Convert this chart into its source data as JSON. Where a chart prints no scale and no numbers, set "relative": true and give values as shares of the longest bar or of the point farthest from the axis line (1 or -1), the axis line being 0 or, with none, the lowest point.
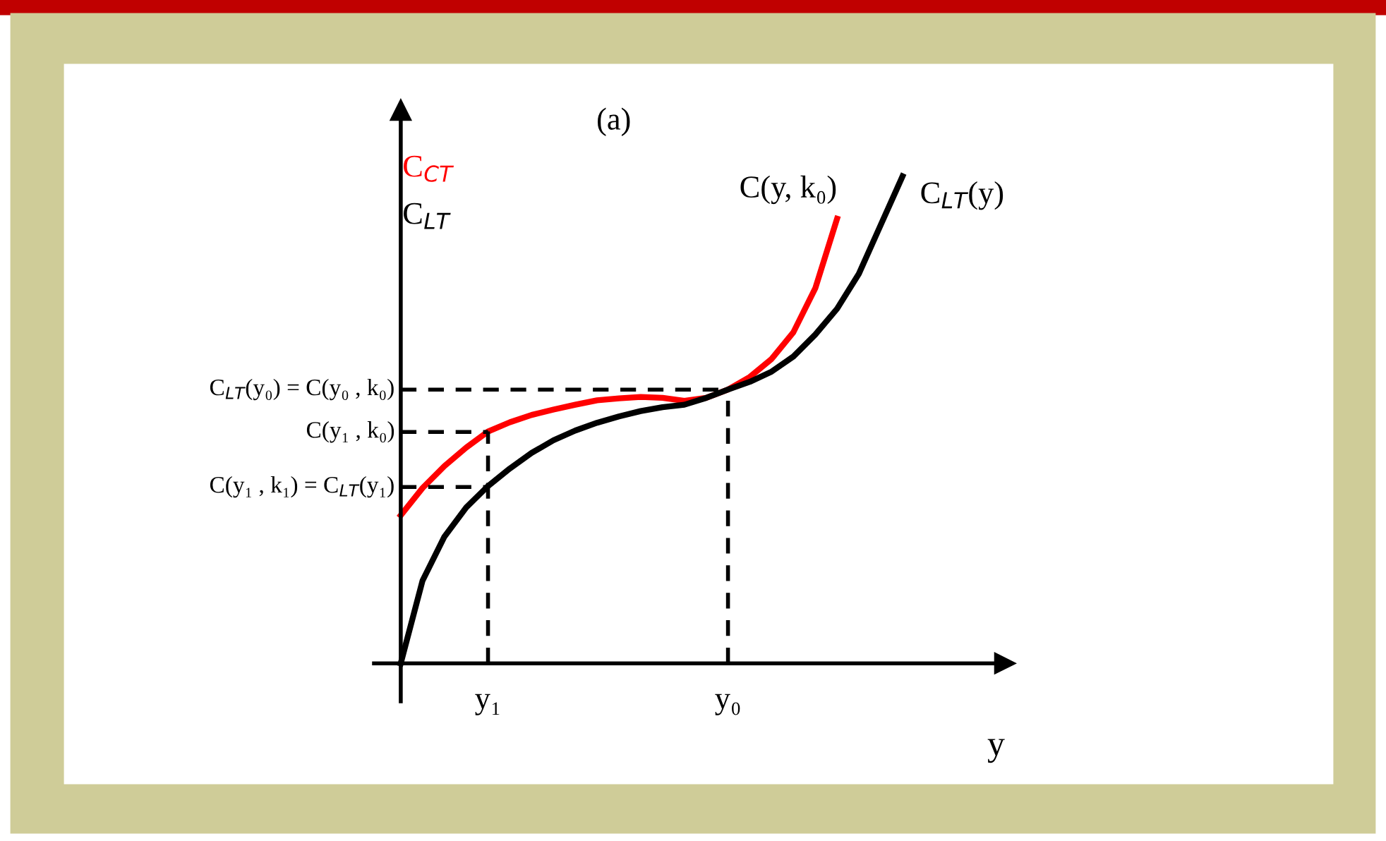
{
  "chart_data": {
    "type": "line",
    "title": "(a)",
    "xlabel": "y",
    "ylabel": "C$_{LT}$",
    "relative": true,
    "categories": [
      null,
      null,
      null,
      null,
      "y₁",
      null,
      null,
      null,
      null,
      null,
      null,
      null,
      null,
      null,
      null,
      "y₀",
      null,
      null,
      null,
      null,
      null,
      null,
      null,
      null
    ],
    "series": [
      {
        "name": "C(y, k₀)",
        "color": "#ff0000",
        "values": [
          0.304,
          0.36,
          0.405,
          0.443,
          0.476,
          0.495,
          0.51,
          0.521,
          0.531,
          0.54,
          0.544,
          0.547,
          0.545,
          0.539,
          0.545,
          0.562,
          0.588,
          0.625,
          0.68,
          0.77,
          0.913,
          null,
          null,
          null
        ]
      },
      {
        "name": "C$_{LT}$(y)",
        "color": "#000000",
        "values": [
          0,
          0.17,
          0.26,
          0.32,
          0.364,
          0.4,
          0.432,
          0.458,
          0.478,
          0.494,
          0.507,
          0.518,
          0.526,
          0.531,
          0.545,
          0.562,
          0.578,
          0.599,
          0.63,
          0.675,
          0.728,
          0.8,
          0.9,
          1
        ]
      }
    ],
    "ref_lines": [
      {
        "axis": "y",
        "value": 0.562,
        "label": "C$_{LT}$(y₀) = C(y₀ , k₀)",
        "color": "#000000",
        "line_style": "dashed"
      },
      {
        "axis": "y",
        "value": 0.475,
        "label": "C(y₁ , k₀)",
        "color": "#000000",
        "line_style": "dashed"
      },
      {
        "axis": "y",
        "value": 0.362,
        "label": "C(y₁ , k₁) = C$_{LT}$(y₁)",
        "color": "#000000",
        "line_style": "dashed"
      },
      {
        "axis": "x",
        "value": "y₁",
        "color": "#000000",
        "line_style": "dashed"
      },
      {
        "axis": "x",
        "value": "y₀",
        "color": "#000000",
        "line_style": "dashed"
      }
    ],
    "annotations": [
      "C$_{CT}$"
    ]
  }
}
